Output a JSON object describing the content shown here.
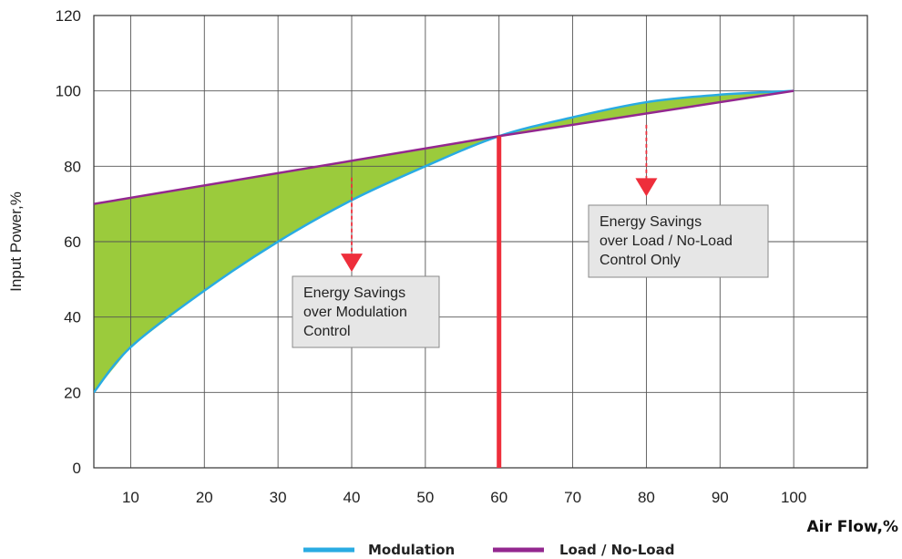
{
  "chart_data": {
    "type": "area",
    "xlabel": "Air Flow,%",
    "ylabel": "Input Power,%",
    "xlim": [
      5,
      110
    ],
    "ylim": [
      0,
      120
    ],
    "x_ticks": [
      10,
      20,
      30,
      40,
      50,
      60,
      70,
      80,
      90,
      100
    ],
    "y_ticks": [
      0,
      20,
      40,
      60,
      80,
      100,
      120
    ],
    "grid": true,
    "legend_position": "bottom-center",
    "series": [
      {
        "name": "Modulation",
        "color": "#29abe2",
        "x": [
          5,
          10,
          20,
          30,
          40,
          50,
          60,
          70,
          80,
          90,
          100
        ],
        "y": [
          20,
          32,
          47,
          60,
          71,
          80,
          88,
          93,
          97,
          99,
          100
        ]
      },
      {
        "name": "Load / No-Load",
        "color": "#93278f",
        "x": [
          5,
          60,
          100
        ],
        "y": [
          70,
          88,
          100
        ]
      }
    ],
    "fill_color": "#9bcb3c",
    "vertical_marker": {
      "x": 60,
      "color": "#ee2e3b"
    },
    "annotations": [
      {
        "lines": [
          "Energy Savings",
          "over Modulation",
          "Control"
        ],
        "arrow_x": 40,
        "arrow_from_y": 77,
        "arrow_to_y": 52
      },
      {
        "lines": [
          "Energy Savings",
          "over Load / No-Load",
          "Control Only"
        ],
        "arrow_x": 80,
        "arrow_from_y": 91,
        "arrow_to_y": 72
      }
    ]
  }
}
